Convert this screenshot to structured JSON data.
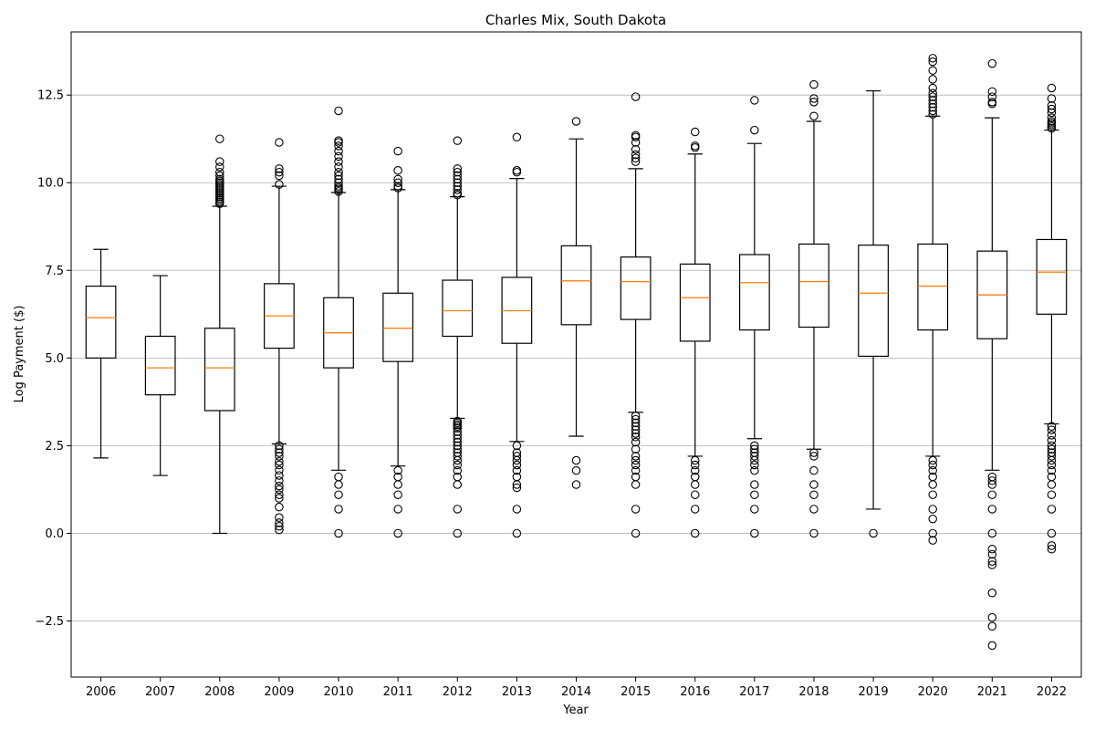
{
  "chart_data": {
    "type": "box",
    "title": "Charles Mix, South Dakota",
    "xlabel": "Year",
    "ylabel": "Log Payment ($)",
    "ylim": [
      -4.1,
      14.3
    ],
    "yticks": [
      -2.5,
      0.0,
      2.5,
      5.0,
      7.5,
      10.0,
      12.5
    ],
    "ytick_labels": [
      "−2.5",
      "0.0",
      "2.5",
      "5.0",
      "7.5",
      "10.0",
      "12.5"
    ],
    "grid": "horizontal",
    "categories": [
      "2006",
      "2007",
      "2008",
      "2009",
      "2010",
      "2011",
      "2012",
      "2013",
      "2014",
      "2015",
      "2016",
      "2017",
      "2018",
      "2019",
      "2020",
      "2021",
      "2022"
    ],
    "boxes": [
      {
        "year": "2006",
        "whislo": 2.15,
        "q1": 5.0,
        "med": 6.15,
        "q3": 7.05,
        "whishi": 8.1,
        "fliers": []
      },
      {
        "year": "2007",
        "whislo": 1.65,
        "q1": 3.95,
        "med": 4.72,
        "q3": 5.62,
        "whishi": 7.35,
        "fliers": []
      },
      {
        "year": "2008",
        "whislo": 0.0,
        "q1": 3.5,
        "med": 4.72,
        "q3": 5.85,
        "whishi": 9.33,
        "fliers": [
          9.4,
          9.45,
          9.5,
          9.55,
          9.6,
          9.65,
          9.7,
          9.75,
          9.8,
          9.85,
          9.9,
          9.95,
          10.0,
          10.05,
          10.1,
          10.2,
          10.3,
          10.45,
          10.6,
          11.25
        ]
      },
      {
        "year": "2009",
        "whislo": 2.55,
        "q1": 5.28,
        "med": 6.2,
        "q3": 7.12,
        "whishi": 9.9,
        "fliers": [
          0.1,
          0.2,
          0.3,
          0.45,
          0.75,
          1.0,
          1.1,
          1.25,
          1.35,
          1.5,
          1.65,
          1.8,
          1.95,
          2.05,
          2.2,
          2.3,
          2.4,
          2.5,
          9.95,
          10.2,
          10.3,
          10.4,
          11.15
        ]
      },
      {
        "year": "2010",
        "whislo": 1.8,
        "q1": 4.72,
        "med": 5.72,
        "q3": 6.72,
        "whishi": 9.72,
        "fliers": [
          0.0,
          0.69,
          1.1,
          1.39,
          1.61,
          9.75,
          9.8,
          9.85,
          9.9,
          10.0,
          10.1,
          10.2,
          10.3,
          10.45,
          10.6,
          10.75,
          10.9,
          11.05,
          11.15,
          11.2,
          12.05
        ]
      },
      {
        "year": "2011",
        "whislo": 1.92,
        "q1": 4.9,
        "med": 5.85,
        "q3": 6.85,
        "whishi": 9.8,
        "fliers": [
          0.0,
          0.69,
          1.1,
          1.39,
          1.61,
          1.79,
          9.85,
          9.9,
          10.0,
          10.1,
          10.35,
          10.9
        ]
      },
      {
        "year": "2012",
        "whislo": 3.28,
        "q1": 5.62,
        "med": 6.35,
        "q3": 7.22,
        "whishi": 9.6,
        "fliers": [
          0.0,
          0.69,
          1.39,
          1.61,
          1.79,
          1.95,
          2.08,
          2.2,
          2.3,
          2.4,
          2.5,
          2.6,
          2.7,
          2.8,
          2.9,
          3.0,
          3.05,
          3.1,
          3.15,
          3.2,
          9.65,
          9.7,
          9.8,
          9.9,
          10.0,
          10.1,
          10.2,
          10.3,
          10.4,
          11.2
        ]
      },
      {
        "year": "2013",
        "whislo": 2.62,
        "q1": 5.42,
        "med": 6.35,
        "q3": 7.3,
        "whishi": 10.12,
        "fliers": [
          0.0,
          0.69,
          1.3,
          1.39,
          1.61,
          1.79,
          1.95,
          2.08,
          2.2,
          2.3,
          2.5,
          10.3,
          10.35,
          11.3
        ]
      },
      {
        "year": "2014",
        "whislo": 2.77,
        "q1": 5.95,
        "med": 7.2,
        "q3": 8.2,
        "whishi": 11.25,
        "fliers": [
          1.39,
          1.79,
          2.08,
          11.75
        ]
      },
      {
        "year": "2015",
        "whislo": 3.45,
        "q1": 6.1,
        "med": 7.18,
        "q3": 7.88,
        "whishi": 10.4,
        "fliers": [
          0.0,
          0.69,
          1.39,
          1.61,
          1.79,
          1.95,
          2.08,
          2.2,
          2.4,
          2.6,
          2.75,
          2.85,
          2.95,
          3.05,
          3.15,
          3.25,
          3.35,
          10.6,
          10.7,
          10.8,
          10.95,
          11.15,
          11.3,
          11.35,
          12.45
        ]
      },
      {
        "year": "2016",
        "whislo": 2.2,
        "q1": 5.48,
        "med": 6.72,
        "q3": 7.68,
        "whishi": 10.82,
        "fliers": [
          0.0,
          0.69,
          1.1,
          1.39,
          1.61,
          1.79,
          1.95,
          2.08,
          11.0,
          11.05,
          11.45
        ]
      },
      {
        "year": "2017",
        "whislo": 2.7,
        "q1": 5.8,
        "med": 7.15,
        "q3": 7.95,
        "whishi": 11.12,
        "fliers": [
          0.0,
          0.69,
          1.1,
          1.39,
          1.79,
          1.95,
          2.08,
          2.2,
          2.3,
          2.4,
          2.5,
          11.5,
          12.35
        ]
      },
      {
        "year": "2018",
        "whislo": 2.4,
        "q1": 5.88,
        "med": 7.18,
        "q3": 8.25,
        "whishi": 11.75,
        "fliers": [
          0.0,
          0.69,
          1.1,
          1.39,
          1.79,
          2.2,
          2.3,
          11.9,
          12.3,
          12.4,
          12.8
        ]
      },
      {
        "year": "2019",
        "whislo": 0.69,
        "q1": 5.05,
        "med": 6.85,
        "q3": 8.22,
        "whishi": 12.62,
        "fliers": [
          0.0
        ]
      },
      {
        "year": "2020",
        "whislo": 2.2,
        "q1": 5.8,
        "med": 7.05,
        "q3": 8.25,
        "whishi": 11.9,
        "fliers": [
          -0.2,
          0.0,
          0.41,
          0.69,
          1.1,
          1.39,
          1.61,
          1.79,
          1.95,
          2.08,
          11.95,
          12.05,
          12.15,
          12.25,
          12.35,
          12.45,
          12.55,
          12.7,
          12.95,
          13.2,
          13.45,
          13.55
        ]
      },
      {
        "year": "2021",
        "whislo": 1.8,
        "q1": 5.55,
        "med": 6.8,
        "q3": 8.05,
        "whishi": 11.85,
        "fliers": [
          -3.2,
          -2.65,
          -2.4,
          -1.7,
          -0.9,
          -0.8,
          -0.6,
          -0.45,
          0.0,
          0.69,
          1.1,
          1.39,
          1.5,
          1.61,
          12.25,
          12.3,
          12.45,
          12.6,
          13.4
        ]
      },
      {
        "year": "2022",
        "whislo": 3.12,
        "q1": 6.25,
        "med": 7.45,
        "q3": 8.38,
        "whishi": 11.5,
        "fliers": [
          -0.45,
          -0.35,
          0.0,
          0.69,
          1.1,
          1.39,
          1.61,
          1.79,
          1.95,
          2.08,
          2.2,
          2.3,
          2.4,
          2.5,
          2.65,
          2.8,
          2.95,
          3.05,
          11.55,
          11.6,
          11.65,
          11.7,
          11.75,
          11.85,
          12.0,
          12.1,
          12.2,
          12.4,
          12.7
        ]
      }
    ],
    "colors": {
      "box": "#000000",
      "median": "#ff7f0e",
      "grid": "#b0b0b0"
    }
  }
}
